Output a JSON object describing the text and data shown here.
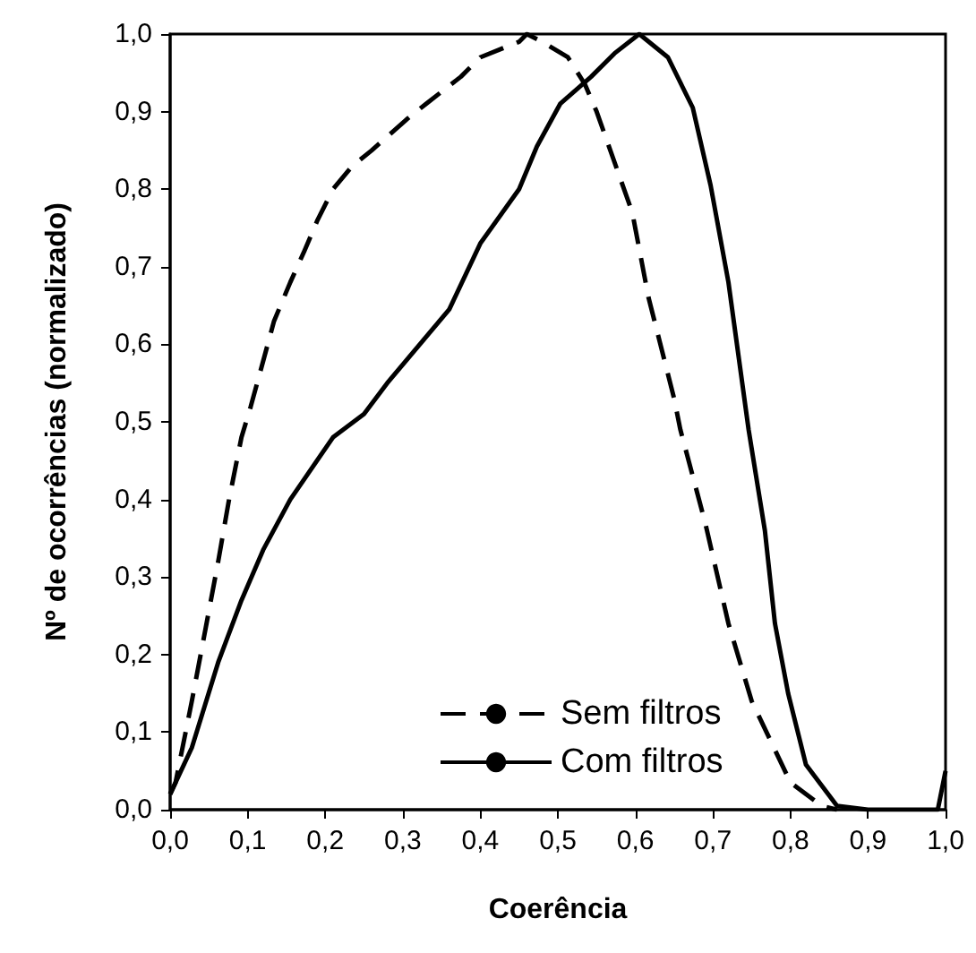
{
  "chart_data": {
    "type": "line",
    "xlabel": "Coerência",
    "ylabel": "Nº de ocorrências (normalizado)",
    "xlim": [
      0,
      1
    ],
    "xticks": [
      {
        "value": 0,
        "label": "0,0"
      },
      {
        "value": 0.1,
        "label": "0,1"
      },
      {
        "value": 0.2,
        "label": "0,2"
      },
      {
        "value": 0.3,
        "label": "0,3"
      },
      {
        "value": 0.4,
        "label": "0,4"
      },
      {
        "value": 0.5,
        "label": "0,5"
      },
      {
        "value": 0.6,
        "label": "0,6"
      },
      {
        "value": 0.7,
        "label": "0,7"
      },
      {
        "value": 0.8,
        "label": "0,8"
      },
      {
        "value": 0.9,
        "label": "0,9"
      },
      {
        "value": 1,
        "label": "1,0"
      }
    ],
    "ylim": [
      0,
      1
    ],
    "yticks": [
      {
        "value": 0,
        "label": "0,0"
      },
      {
        "value": 0.1,
        "label": "0,1"
      },
      {
        "value": 0.2,
        "label": "0,2"
      },
      {
        "value": 0.3,
        "label": "0,3"
      },
      {
        "value": 0.4,
        "label": "0,4"
      },
      {
        "value": 0.5,
        "label": "0,5"
      },
      {
        "value": 0.6,
        "label": "0,6"
      },
      {
        "value": 0.7,
        "label": "0,7"
      },
      {
        "value": 0.8,
        "label": "0,8"
      },
      {
        "value": 0.9,
        "label": "0,9"
      },
      {
        "value": 1,
        "label": "1,0"
      }
    ],
    "grid": false,
    "legend": "bottom",
    "marker": "none",
    "series": [
      {
        "name": "Sem filtros",
        "color": "#000000",
        "line_style": "dashed",
        "x": [
          0,
          0.007,
          0.028,
          0.046,
          0.062,
          0.076,
          0.092,
          0.104,
          0.115,
          0.134,
          0.155,
          0.173,
          0.19,
          0.21,
          0.235,
          0.26,
          0.305,
          0.33,
          0.375,
          0.4,
          0.45,
          0.46,
          0.48,
          0.513,
          0.535,
          0.55,
          0.596,
          0.617,
          0.65,
          0.658,
          0.69,
          0.72,
          0.75,
          0.8,
          0.84,
          0.86
        ],
        "values": [
          0.02,
          0.035,
          0.14,
          0.235,
          0.32,
          0.4,
          0.48,
          0.52,
          0.56,
          0.63,
          0.68,
          0.72,
          0.76,
          0.8,
          0.83,
          0.85,
          0.89,
          0.91,
          0.945,
          0.97,
          0.99,
          1,
          0.99,
          0.97,
          0.935,
          0.9,
          0.77,
          0.66,
          0.53,
          0.49,
          0.37,
          0.24,
          0.14,
          0.035,
          0.005,
          0
        ]
      },
      {
        "name": "Com filtros",
        "color": "#000000",
        "line_style": "solid",
        "x": [
          0,
          0.028,
          0.062,
          0.092,
          0.12,
          0.155,
          0.21,
          0.25,
          0.28,
          0.36,
          0.4,
          0.45,
          0.473,
          0.503,
          0.543,
          0.573,
          0.605,
          0.642,
          0.674,
          0.697,
          0.72,
          0.746,
          0.767,
          0.78,
          0.797,
          0.82,
          0.86,
          0.9,
          0.99,
          1
        ],
        "values": [
          0.02,
          0.08,
          0.19,
          0.27,
          0.335,
          0.4,
          0.48,
          0.51,
          0.55,
          0.645,
          0.73,
          0.8,
          0.855,
          0.91,
          0.945,
          0.975,
          1,
          0.97,
          0.905,
          0.805,
          0.68,
          0.49,
          0.36,
          0.24,
          0.15,
          0.058,
          0.005,
          0,
          0,
          0.05
        ]
      }
    ]
  }
}
